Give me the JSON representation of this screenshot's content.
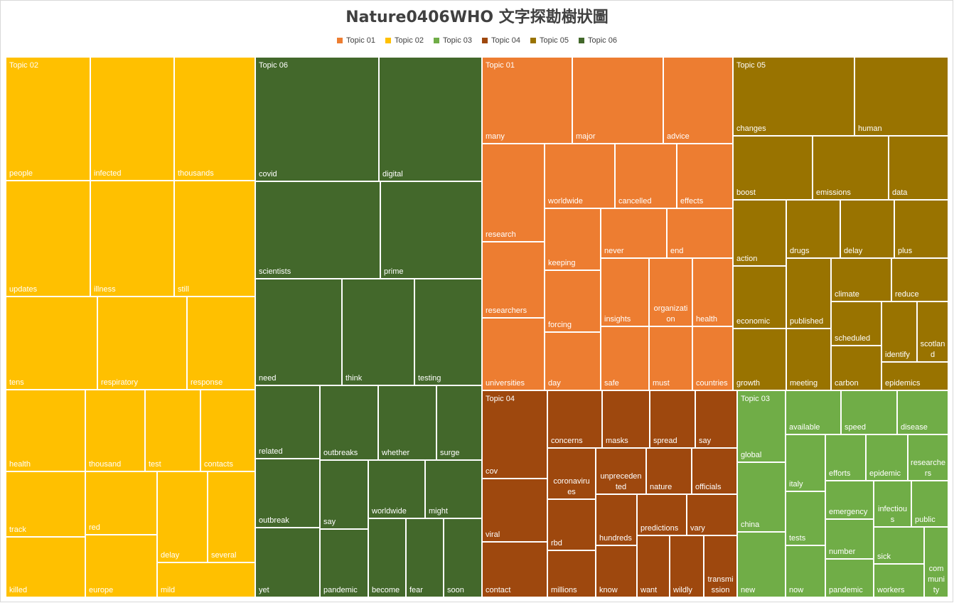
{
  "chart_data": {
    "type": "treemap",
    "title": "Nature0406WHO 文字探勘樹狀圖",
    "legend_position": "top",
    "groups": [
      {
        "name": "Topic 01",
        "color": "#ED7D31",
        "items": [
          "many",
          "major",
          "advice",
          "research",
          "worldwide",
          "cancelled",
          "effects",
          "keeping",
          "never",
          "end",
          "researchers",
          "forcing",
          "insights",
          "organization",
          "health",
          "universities",
          "day",
          "safe",
          "must",
          "countries"
        ]
      },
      {
        "name": "Topic 02",
        "color": "#FFC000",
        "items": [
          "people",
          "infected",
          "thousands",
          "updates",
          "illness",
          "still",
          "tens",
          "respiratory",
          "response",
          "health",
          "thousand",
          "test",
          "contacts",
          "track",
          "red",
          "delay",
          "several",
          "killed",
          "europe",
          "mild"
        ]
      },
      {
        "name": "Topic 03",
        "color": "#70AD47",
        "items": [
          "global",
          "available",
          "speed",
          "disease",
          "italy",
          "efforts",
          "epidemic",
          "researchers",
          "china",
          "emergency",
          "infectious",
          "public",
          "tests",
          "number",
          "sick",
          "community",
          "new",
          "now",
          "pandemic",
          "workers"
        ]
      },
      {
        "name": "Topic 04",
        "color": "#9E480E",
        "items": [
          "cov",
          "concerns",
          "masks",
          "spread",
          "say",
          "coronavirus",
          "unprecedented",
          "nature",
          "officials",
          "viral",
          "rbd",
          "hundreds",
          "predictions",
          "vary",
          "contact",
          "millions",
          "know",
          "want",
          "wildly",
          "transmission"
        ]
      },
      {
        "name": "Topic 05",
        "color": "#997300",
        "items": [
          "changes",
          "human",
          "boost",
          "emissions",
          "data",
          "action",
          "drugs",
          "delay",
          "plus",
          "climate",
          "reduce",
          "economic",
          "published",
          "scheduled",
          "identify",
          "scotland",
          "growth",
          "meeting",
          "carbon",
          "epidemics"
        ]
      },
      {
        "name": "Topic 06",
        "color": "#43682B",
        "items": [
          "covid",
          "digital",
          "scientists",
          "prime",
          "need",
          "think",
          "testing",
          "related",
          "outbreaks",
          "whether",
          "surge",
          "outbreak",
          "say",
          "worldwide",
          "might",
          "yet",
          "pandemic",
          "become",
          "fear",
          "soon"
        ]
      }
    ]
  }
}
